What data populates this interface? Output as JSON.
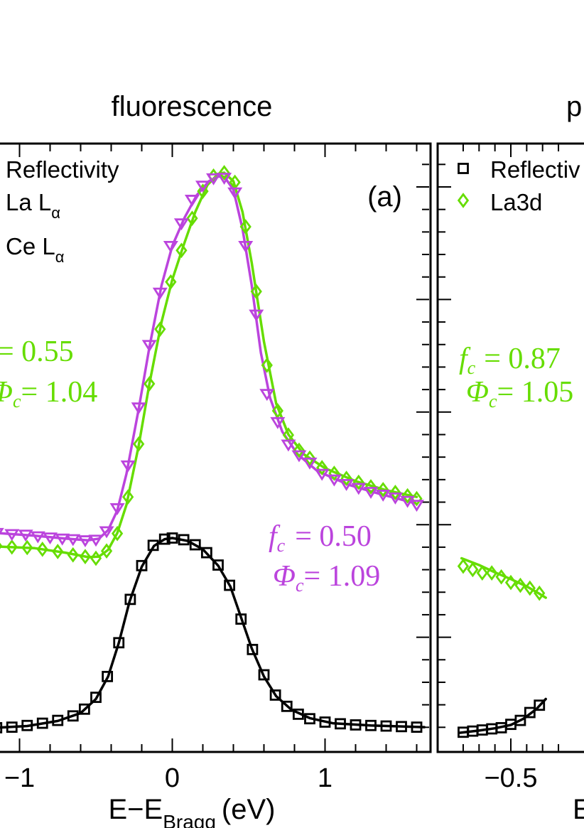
{
  "colors": {
    "reflectivity": "#000000",
    "la": "#66dd00",
    "ce": "#bb44dd",
    "axis": "#000000",
    "background": "#ffffff"
  },
  "chart_data": [
    {
      "panel": "(a)",
      "type": "scatter",
      "title": "fluorescence",
      "xlabel": "E−E",
      "xlabel_subscript": "Bragg",
      "xlabel_unit": "(eV)",
      "xlim": [
        -1.1,
        1.65
      ],
      "ylim": [
        0,
        1.0
      ],
      "x_ticks": [
        -1,
        0,
        1
      ],
      "x_tick_labels": [
        "−1",
        "0",
        "1"
      ],
      "legend": {
        "placement": "top-left",
        "entries": [
          {
            "label": "Reflectivity",
            "marker": "square",
            "color": "#000000"
          },
          {
            "label": "La L",
            "sub": "α",
            "marker": "diamond",
            "color": "#66dd00"
          },
          {
            "label": "Ce L",
            "sub": "α",
            "marker": "triangle-down",
            "color": "#bb44dd"
          }
        ]
      },
      "annotations": [
        {
          "series": "La Lα",
          "fc_label": "= 0.55",
          "phi_label": "= 1.04"
        },
        {
          "series": "Ce Lα",
          "fc_label": "= 0.50",
          "phi_label": "= 1.09"
        }
      ],
      "series": [
        {
          "name": "Reflectivity",
          "marker": "square",
          "color": "#000000",
          "points": [
            [
              -1.15,
              0.014
            ],
            [
              -1.05,
              0.015
            ],
            [
              -0.95,
              0.018
            ],
            [
              -0.85,
              0.022
            ],
            [
              -0.75,
              0.027
            ],
            [
              -0.65,
              0.035
            ],
            [
              -0.575,
              0.047
            ],
            [
              -0.5,
              0.068
            ],
            [
              -0.425,
              0.105
            ],
            [
              -0.35,
              0.165
            ],
            [
              -0.275,
              0.242
            ],
            [
              -0.2,
              0.302
            ],
            [
              -0.125,
              0.338
            ],
            [
              -0.05,
              0.349
            ],
            [
              0.0,
              0.351
            ],
            [
              0.075,
              0.348
            ],
            [
              0.15,
              0.339
            ],
            [
              0.225,
              0.325
            ],
            [
              0.3,
              0.303
            ],
            [
              0.375,
              0.267
            ],
            [
              0.45,
              0.207
            ],
            [
              0.525,
              0.153
            ],
            [
              0.6,
              0.108
            ],
            [
              0.675,
              0.072
            ],
            [
              0.75,
              0.052
            ],
            [
              0.825,
              0.038
            ],
            [
              0.9,
              0.03
            ],
            [
              1.0,
              0.024
            ],
            [
              1.1,
              0.021
            ],
            [
              1.2,
              0.019
            ],
            [
              1.3,
              0.018
            ],
            [
              1.4,
              0.017
            ],
            [
              1.5,
              0.016
            ],
            [
              1.6,
              0.015
            ]
          ],
          "fit": [
            [
              -1.15,
              0.014
            ],
            [
              -0.95,
              0.017
            ],
            [
              -0.75,
              0.026
            ],
            [
              -0.6,
              0.04
            ],
            [
              -0.5,
              0.065
            ],
            [
              -0.42,
              0.105
            ],
            [
              -0.35,
              0.165
            ],
            [
              -0.28,
              0.238
            ],
            [
              -0.2,
              0.3
            ],
            [
              -0.12,
              0.337
            ],
            [
              -0.05,
              0.349
            ],
            [
              0.0,
              0.351
            ],
            [
              0.1,
              0.346
            ],
            [
              0.2,
              0.331
            ],
            [
              0.3,
              0.302
            ],
            [
              0.38,
              0.265
            ],
            [
              0.45,
              0.21
            ],
            [
              0.52,
              0.155
            ],
            [
              0.6,
              0.105
            ],
            [
              0.68,
              0.07
            ],
            [
              0.78,
              0.046
            ],
            [
              0.9,
              0.031
            ],
            [
              1.05,
              0.022
            ],
            [
              1.3,
              0.018
            ],
            [
              1.65,
              0.015
            ]
          ]
        },
        {
          "name": "La Lα",
          "marker": "diamond",
          "color": "#66dd00",
          "points": [
            [
              -1.15,
              0.337
            ],
            [
              -1.05,
              0.335
            ],
            [
              -0.95,
              0.334
            ],
            [
              -0.85,
              0.331
            ],
            [
              -0.75,
              0.327
            ],
            [
              -0.65,
              0.321
            ],
            [
              -0.57,
              0.318
            ],
            [
              -0.5,
              0.315
            ],
            [
              -0.43,
              0.328
            ],
            [
              -0.36,
              0.359
            ],
            [
              -0.29,
              0.424
            ],
            [
              -0.22,
              0.518
            ],
            [
              -0.15,
              0.625
            ],
            [
              -0.08,
              0.722
            ],
            [
              -0.01,
              0.806
            ],
            [
              0.06,
              0.862
            ],
            [
              0.13,
              0.919
            ],
            [
              0.2,
              0.967
            ],
            [
              0.27,
              0.994
            ],
            [
              0.34,
              1.0
            ],
            [
              0.41,
              0.983
            ],
            [
              0.48,
              0.904
            ],
            [
              0.55,
              0.789
            ],
            [
              0.62,
              0.658
            ],
            [
              0.69,
              0.577
            ],
            [
              0.76,
              0.534
            ],
            [
              0.83,
              0.507
            ],
            [
              0.9,
              0.493
            ],
            [
              0.98,
              0.476
            ],
            [
              1.06,
              0.466
            ],
            [
              1.14,
              0.457
            ],
            [
              1.22,
              0.45
            ],
            [
              1.3,
              0.442
            ],
            [
              1.38,
              0.437
            ],
            [
              1.46,
              0.432
            ],
            [
              1.54,
              0.426
            ],
            [
              1.6,
              0.421
            ]
          ],
          "fit": [
            [
              -1.15,
              0.336
            ],
            [
              -0.9,
              0.333
            ],
            [
              -0.7,
              0.325
            ],
            [
              -0.55,
              0.317
            ],
            [
              -0.48,
              0.318
            ],
            [
              -0.42,
              0.33
            ],
            [
              -0.36,
              0.36
            ],
            [
              -0.3,
              0.41
            ],
            [
              -0.22,
              0.515
            ],
            [
              -0.15,
              0.625
            ],
            [
              -0.07,
              0.735
            ],
            [
              0.0,
              0.81
            ],
            [
              0.07,
              0.868
            ],
            [
              0.15,
              0.93
            ],
            [
              0.23,
              0.978
            ],
            [
              0.3,
              0.998
            ],
            [
              0.34,
              1.0
            ],
            [
              0.4,
              0.985
            ],
            [
              0.46,
              0.93
            ],
            [
              0.52,
              0.84
            ],
            [
              0.6,
              0.7
            ],
            [
              0.68,
              0.59
            ],
            [
              0.76,
              0.535
            ],
            [
              0.86,
              0.5
            ],
            [
              1.0,
              0.475
            ],
            [
              1.2,
              0.452
            ],
            [
              1.4,
              0.436
            ],
            [
              1.6,
              0.424
            ]
          ]
        },
        {
          "name": "Ce Lα",
          "marker": "triangle-down",
          "color": "#bb44dd",
          "points": [
            [
              -1.15,
              0.36
            ],
            [
              -1.05,
              0.358
            ],
            [
              -0.96,
              0.357
            ],
            [
              -0.88,
              0.354
            ],
            [
              -0.8,
              0.352
            ],
            [
              -0.72,
              0.35
            ],
            [
              -0.65,
              0.349
            ],
            [
              -0.57,
              0.347
            ],
            [
              -0.5,
              0.348
            ],
            [
              -0.43,
              0.363
            ],
            [
              -0.36,
              0.404
            ],
            [
              -0.29,
              0.48
            ],
            [
              -0.22,
              0.583
            ],
            [
              -0.15,
              0.694
            ],
            [
              -0.08,
              0.787
            ],
            [
              -0.01,
              0.87
            ],
            [
              0.06,
              0.91
            ],
            [
              0.13,
              0.952
            ],
            [
              0.2,
              0.977
            ],
            [
              0.27,
              0.99
            ],
            [
              0.34,
              0.991
            ],
            [
              0.41,
              0.965
            ],
            [
              0.48,
              0.87
            ],
            [
              0.55,
              0.748
            ],
            [
              0.62,
              0.607
            ],
            [
              0.69,
              0.557
            ],
            [
              0.76,
              0.517
            ],
            [
              0.83,
              0.498
            ],
            [
              0.9,
              0.485
            ],
            [
              0.98,
              0.465
            ],
            [
              1.06,
              0.455
            ],
            [
              1.14,
              0.447
            ],
            [
              1.22,
              0.44
            ],
            [
              1.3,
              0.433
            ],
            [
              1.38,
              0.428
            ],
            [
              1.46,
              0.423
            ],
            [
              1.54,
              0.417
            ],
            [
              1.6,
              0.41
            ]
          ],
          "fit": [
            [
              -1.15,
              0.36
            ],
            [
              -0.9,
              0.355
            ],
            [
              -0.7,
              0.35
            ],
            [
              -0.55,
              0.347
            ],
            [
              -0.48,
              0.35
            ],
            [
              -0.42,
              0.365
            ],
            [
              -0.36,
              0.4
            ],
            [
              -0.3,
              0.465
            ],
            [
              -0.22,
              0.58
            ],
            [
              -0.15,
              0.69
            ],
            [
              -0.07,
              0.8
            ],
            [
              0.0,
              0.87
            ],
            [
              0.08,
              0.92
            ],
            [
              0.16,
              0.96
            ],
            [
              0.24,
              0.985
            ],
            [
              0.3,
              0.993
            ],
            [
              0.34,
              0.993
            ],
            [
              0.4,
              0.97
            ],
            [
              0.46,
              0.9
            ],
            [
              0.52,
              0.8
            ],
            [
              0.58,
              0.68
            ],
            [
              0.64,
              0.6
            ],
            [
              0.72,
              0.54
            ],
            [
              0.82,
              0.5
            ],
            [
              0.95,
              0.47
            ],
            [
              1.15,
              0.446
            ],
            [
              1.35,
              0.43
            ],
            [
              1.6,
              0.412
            ]
          ]
        }
      ]
    },
    {
      "panel": "(b)",
      "type": "scatter",
      "title": "p",
      "xlabel": "E",
      "xlim": [
        -0.68,
        -0.32
      ],
      "ylim": [
        0,
        1.0
      ],
      "x_ticks": [
        -0.5
      ],
      "x_tick_labels": [
        "−0.5"
      ],
      "legend": {
        "placement": "top-left",
        "entries": [
          {
            "label": "Reflectiv",
            "marker": "square",
            "color": "#000000"
          },
          {
            "label": "La3d",
            "marker": "diamond",
            "color": "#66dd00"
          }
        ]
      },
      "annotations": [
        {
          "series": "La3d",
          "fc_label": "= 0.87",
          "phi_label": "= 1.05"
        }
      ],
      "series": [
        {
          "name": "Reflectivity",
          "marker": "square",
          "color": "#000000",
          "points": [
            [
              -0.65,
              0.006
            ],
            [
              -0.62,
              0.008
            ],
            [
              -0.59,
              0.01
            ],
            [
              -0.56,
              0.012
            ],
            [
              -0.53,
              0.014
            ],
            [
              -0.5,
              0.02
            ],
            [
              -0.47,
              0.027
            ],
            [
              -0.44,
              0.041
            ],
            [
              -0.41,
              0.054
            ]
          ],
          "fit": [
            [
              -0.66,
              0.005
            ],
            [
              -0.6,
              0.009
            ],
            [
              -0.55,
              0.013
            ],
            [
              -0.5,
              0.019
            ],
            [
              -0.46,
              0.03
            ],
            [
              -0.42,
              0.047
            ],
            [
              -0.39,
              0.065
            ]
          ]
        },
        {
          "name": "La3d",
          "marker": "diamond",
          "color": "#66dd00",
          "points": [
            [
              -0.65,
              0.301
            ],
            [
              -0.62,
              0.295
            ],
            [
              -0.59,
              0.289
            ],
            [
              -0.56,
              0.289
            ],
            [
              -0.53,
              0.282
            ],
            [
              -0.5,
              0.272
            ],
            [
              -0.47,
              0.267
            ],
            [
              -0.44,
              0.262
            ],
            [
              -0.41,
              0.253
            ]
          ],
          "fit": [
            [
              -0.655,
              0.315
            ],
            [
              -0.6,
              0.303
            ],
            [
              -0.55,
              0.29
            ],
            [
              -0.5,
              0.278
            ],
            [
              -0.45,
              0.265
            ],
            [
              -0.41,
              0.252
            ],
            [
              -0.39,
              0.245
            ]
          ]
        }
      ]
    }
  ]
}
